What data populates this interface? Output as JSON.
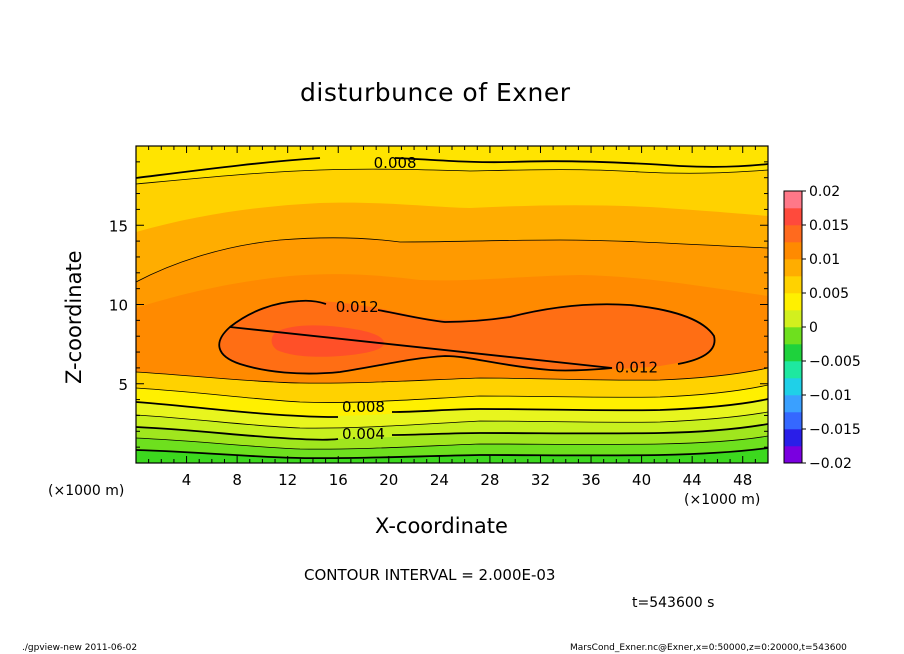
{
  "chart_data": {
    "type": "heatmap",
    "title": "disturbunce of Exner",
    "xlabel": "X-coordinate",
    "ylabel": "Z-coordinate",
    "x_unit_label": "(×1000 m)",
    "x_ticks": [
      4,
      8,
      12,
      16,
      20,
      24,
      28,
      32,
      36,
      40,
      44,
      48
    ],
    "y_ticks": [
      5,
      10,
      15
    ],
    "xlim": [
      0,
      50
    ],
    "ylim": [
      0,
      20
    ],
    "colorbar": {
      "ticks": [
        "0.02",
        "0.015",
        "0.01",
        "0.005",
        "0",
        "−0.005",
        "−0.01",
        "−0.015",
        "−0.02"
      ],
      "range": [
        -0.02,
        0.02
      ]
    },
    "contour_labels": [
      {
        "text": "0.008",
        "x": 20.5,
        "z": 19.0
      },
      {
        "text": "0.012",
        "x": 17.5,
        "z": 9.9
      },
      {
        "text": "0.012",
        "x": 39.6,
        "z": 6.1
      },
      {
        "text": "0.008",
        "x": 18.0,
        "z": 3.6
      },
      {
        "text": "0.004",
        "x": 18.0,
        "z": 1.9
      }
    ],
    "contour_interval": "CONTOUR INTERVAL = 2.000E-03",
    "time_label": "t=543600 s",
    "footer_left": "./gpview-new   2011-06-02",
    "footer_right": "MarsCond_Exner.nc@Exner,x=0:50000,z=0:20000,t=543600",
    "colors": {
      "band_colors": [
        "#7a00e0",
        "#2a1ee8",
        "#3568ff",
        "#3aa0ff",
        "#1fd0e8",
        "#1ee8a0",
        "#1ed23c",
        "#6ee01e",
        "#d2f01e",
        "#fff000",
        "#ffd200",
        "#ffad00",
        "#ff8a00",
        "#ff6a1e",
        "#ff4a3c",
        "#ff7888"
      ]
    }
  }
}
